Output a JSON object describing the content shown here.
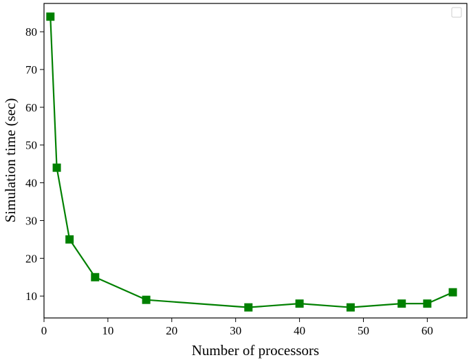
{
  "chart_data": {
    "type": "line",
    "title": "",
    "xlabel": "Number of processors",
    "ylabel": "Simulation time (sec)",
    "xlim": [
      0,
      66.2
    ],
    "ylim": [
      4.2,
      87.5
    ],
    "xticks": [
      0,
      10,
      20,
      30,
      40,
      50,
      60
    ],
    "yticks": [
      10,
      20,
      30,
      40,
      50,
      60,
      70,
      80
    ],
    "x": [
      1,
      2,
      4,
      8,
      16,
      32,
      40,
      48,
      56,
      60,
      64
    ],
    "series": [
      {
        "values": [
          84,
          44,
          25,
          15,
          9,
          7,
          8,
          7,
          8,
          8,
          11
        ],
        "color": "#008000",
        "marker": "square"
      }
    ],
    "legend": {
      "placement": "upper-right",
      "entries": []
    },
    "grid": false
  }
}
